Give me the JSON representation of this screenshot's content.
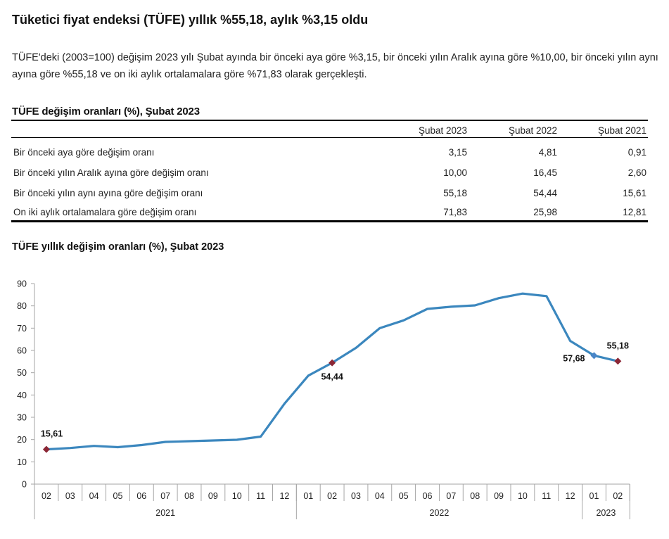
{
  "headline": "Tüketici fiyat endeksi (TÜFE) yıllık %55,18, aylık %3,15 oldu",
  "summary": "TÜFE'deki (2003=100) değişim 2023 yılı Şubat ayında bir önceki aya göre %3,15, bir önceki yılın Aralık ayına göre %10,00, bir önceki yılın aynı ayına göre %55,18 ve on iki aylık ortalamalara göre %71,83 olarak gerçekleşti.",
  "table": {
    "title": "TÜFE değişim oranları (%), Şubat 2023",
    "columns": [
      "",
      "Şubat 2023",
      "Şubat 2022",
      "Şubat 2021"
    ],
    "rows": [
      {
        "label": "Bir önceki aya göre değişim oranı",
        "values": [
          "3,15",
          "4,81",
          "0,91"
        ]
      },
      {
        "label": "Bir önceki yılın Aralık ayına göre değişim oranı",
        "values": [
          "10,00",
          "16,45",
          "2,60"
        ]
      },
      {
        "label": "Bir önceki yılın aynı ayına göre değişim oranı",
        "values": [
          "55,18",
          "54,44",
          "15,61"
        ]
      },
      {
        "label": "On iki aylık ortalamalara göre değişim oranı",
        "values": [
          "71,83",
          "25,98",
          "12,81"
        ]
      }
    ]
  },
  "chart_data": {
    "type": "line",
    "title": "TÜFE yıllık değişim oranları (%), Şubat 2023",
    "xlabel": "",
    "ylabel": "",
    "ylim": [
      0,
      90
    ],
    "yticks": [
      0,
      10,
      20,
      30,
      40,
      50,
      60,
      70,
      80,
      90
    ],
    "grid": false,
    "legend": "none",
    "x": [
      "02",
      "03",
      "04",
      "05",
      "06",
      "07",
      "08",
      "09",
      "10",
      "11",
      "12",
      "01",
      "02",
      "03",
      "04",
      "05",
      "06",
      "07",
      "08",
      "09",
      "10",
      "11",
      "12",
      "01",
      "02"
    ],
    "year_groups": [
      {
        "label": "2021",
        "count": 11
      },
      {
        "label": "2022",
        "count": 12
      },
      {
        "label": "2023",
        "count": 2
      }
    ],
    "series": [
      {
        "name": "TÜFE yıllık değişim (%)",
        "color": "#3B87BE",
        "values": [
          15.61,
          16.19,
          17.14,
          16.59,
          17.53,
          18.95,
          19.25,
          19.58,
          19.89,
          21.31,
          36.08,
          48.69,
          54.44,
          61.14,
          69.97,
          73.5,
          78.62,
          79.6,
          80.21,
          83.45,
          85.51,
          84.39,
          64.27,
          57.68,
          55.18
        ]
      }
    ],
    "annotations": [
      {
        "index": 0,
        "label": "15,61",
        "marker": "diamond",
        "color": "#8B2635",
        "position": "above"
      },
      {
        "index": 12,
        "label": "54,44",
        "marker": "diamond",
        "color": "#8B2635",
        "position": "below"
      },
      {
        "index": 23,
        "label": "57,68",
        "marker": "diamond",
        "color": "#4A86C8",
        "position": "left"
      },
      {
        "index": 24,
        "label": "55,18",
        "marker": "diamond",
        "color": "#8B2635",
        "position": "above"
      }
    ]
  }
}
